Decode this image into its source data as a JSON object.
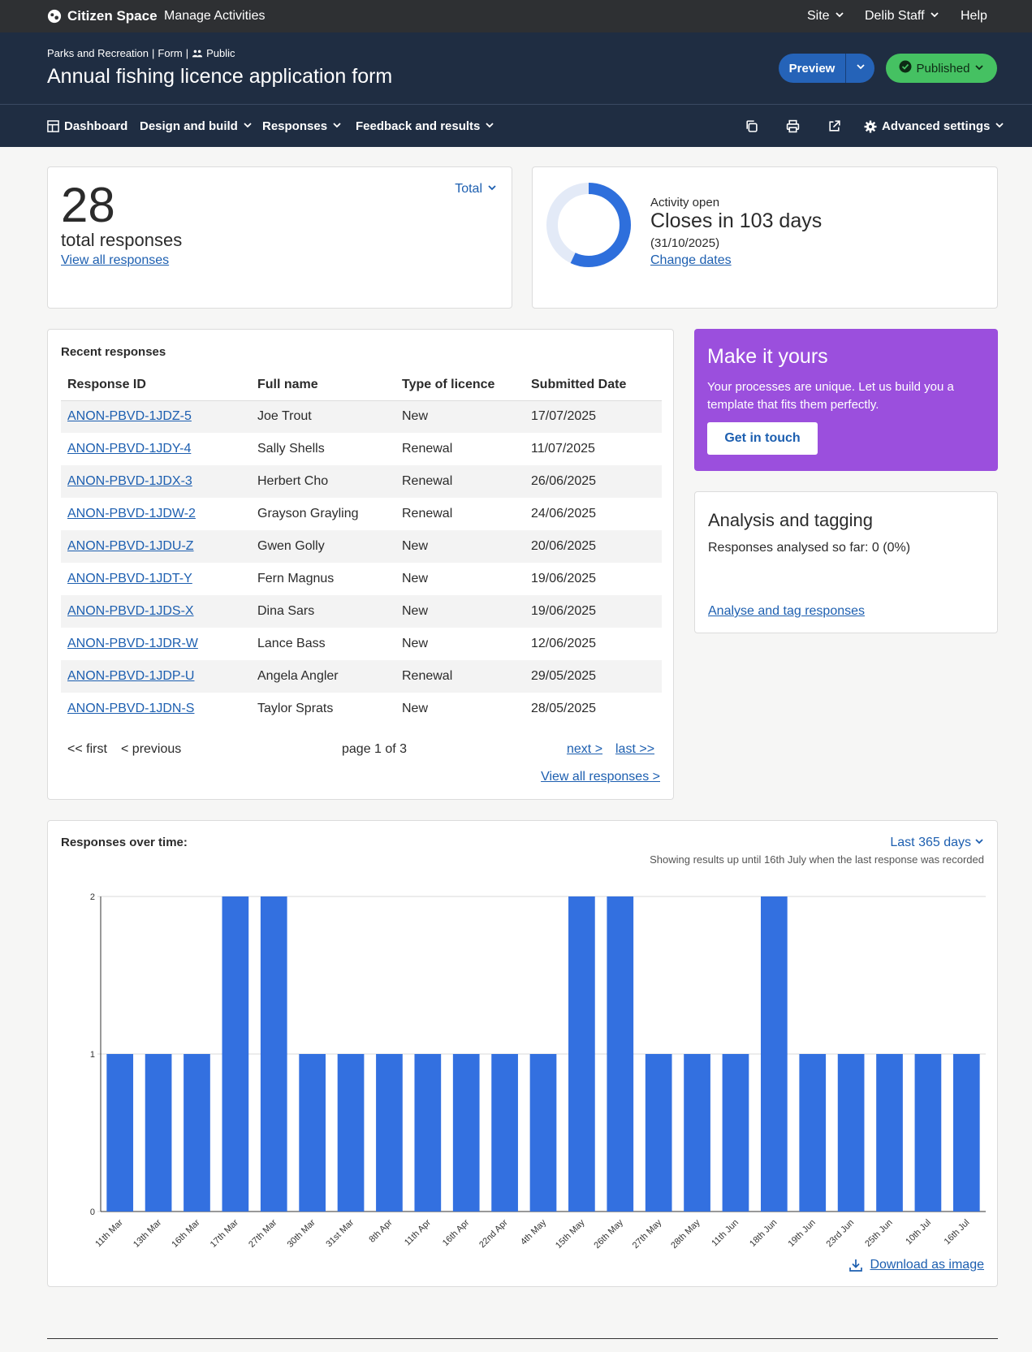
{
  "topbar": {
    "brand": "Citizen Space",
    "manage": "Manage Activities",
    "site": "Site",
    "user": "Delib Staff",
    "help": "Help"
  },
  "header": {
    "crumb_dept": "Parks and Recreation",
    "crumb_type": "Form",
    "crumb_visibility": "Public",
    "title": "Annual fishing licence application form",
    "preview_label": "Preview",
    "status_label": "Published"
  },
  "nav": {
    "dashboard": "Dashboard",
    "design": "Design and build",
    "responses": "Responses",
    "feedback": "Feedback and results",
    "advanced": "Advanced settings"
  },
  "summary": {
    "count": "28",
    "count_label": "total responses",
    "view_all": "View all responses",
    "filter": "Total"
  },
  "activity": {
    "status": "Activity open",
    "closes": "Closes in 103 days",
    "close_date": "(31/10/2025)",
    "change_dates": "Change dates",
    "progress_fraction": 0.57,
    "colors": {
      "progress": "#2e6fdc",
      "track": "#e3eaf7"
    }
  },
  "recent": {
    "title": "Recent responses",
    "columns": [
      "Response ID",
      "Full name",
      "Type of licence",
      "Submitted Date"
    ],
    "rows": [
      [
        "ANON-PBVD-1JDZ-5",
        "Joe Trout",
        "New",
        "17/07/2025"
      ],
      [
        "ANON-PBVD-1JDY-4",
        "Sally Shells",
        "Renewal",
        "11/07/2025"
      ],
      [
        "ANON-PBVD-1JDX-3",
        "Herbert Cho",
        "Renewal",
        "26/06/2025"
      ],
      [
        "ANON-PBVD-1JDW-2",
        "Grayson Grayling",
        "Renewal",
        "24/06/2025"
      ],
      [
        "ANON-PBVD-1JDU-Z",
        "Gwen Golly",
        "New",
        "20/06/2025"
      ],
      [
        "ANON-PBVD-1JDT-Y",
        "Fern Magnus",
        "New",
        "19/06/2025"
      ],
      [
        "ANON-PBVD-1JDS-X",
        "Dina Sars",
        "New",
        "19/06/2025"
      ],
      [
        "ANON-PBVD-1JDR-W",
        "Lance Bass",
        "New",
        "12/06/2025"
      ],
      [
        "ANON-PBVD-1JDP-U",
        "Angela Angler",
        "Renewal",
        "29/05/2025"
      ],
      [
        "ANON-PBVD-1JDN-S",
        "Taylor Sprats",
        "New",
        "28/05/2025"
      ]
    ],
    "pager": {
      "first": "<< first",
      "previous": "< previous",
      "page": "page 1 of 3",
      "next": "next >",
      "last": "last >>"
    },
    "view_all": "View all responses >"
  },
  "promo": {
    "title": "Make it yours",
    "text": "Your processes are unique. Let us build you a template that fits them perfectly.",
    "button": "Get in touch",
    "color": "#9b4fdd"
  },
  "analysis": {
    "title": "Analysis and tagging",
    "progress": "Responses analysed so far: 0 (0%)",
    "link": "Analyse and tag responses"
  },
  "chart_section": {
    "title": "Responses over time:",
    "range": "Last 365 days",
    "note": "Showing results up until 16th July when the last response was recorded",
    "download": "Download as image"
  },
  "chart_data": {
    "type": "bar",
    "categories": [
      "11th Mar",
      "13th Mar",
      "16th Mar",
      "17th Mar",
      "27th Mar",
      "30th Mar",
      "31st Mar",
      "8th Apr",
      "11th Apr",
      "16th Apr",
      "22nd Apr",
      "4th May",
      "15th May",
      "26th May",
      "27th May",
      "28th May",
      "11th Jun",
      "18th Jun",
      "19th Jun",
      "23rd Jun",
      "25th Jun",
      "10th Jul",
      "16th Jul"
    ],
    "values": [
      1,
      1,
      1,
      2,
      2,
      1,
      1,
      1,
      1,
      1,
      1,
      1,
      2,
      2,
      1,
      1,
      1,
      2,
      1,
      1,
      1,
      1,
      1
    ],
    "ylim": [
      0,
      2
    ],
    "yticks": [
      "0",
      "1",
      "2"
    ],
    "grid": true,
    "color": "#3370e0"
  }
}
